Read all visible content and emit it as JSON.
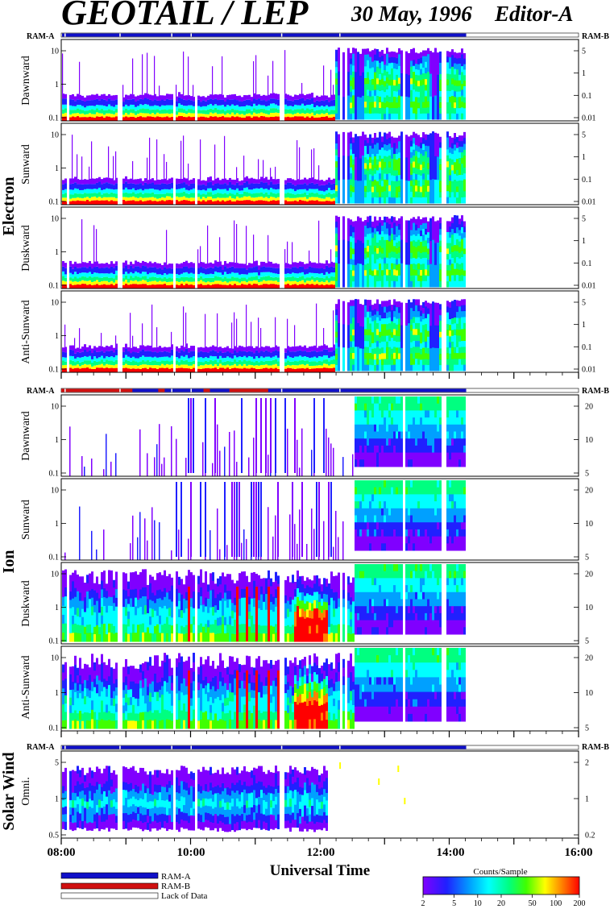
{
  "header": {
    "title": "GEOTAIL / LEP",
    "date": "30 May, 1996",
    "editor": "Editor-A"
  },
  "groups": {
    "electron": "Electron",
    "ion": "Ion",
    "solar_wind": "Solar Wind"
  },
  "ram": {
    "a": "RAM-A",
    "b": "RAM-B"
  },
  "panels": {
    "electron": [
      "Dawnward",
      "Sunward",
      "Duskward",
      "Anti-Sunward"
    ],
    "ion": [
      "Dawnward",
      "Sunward",
      "Duskward",
      "Anti-Sunward"
    ],
    "solar_wind": [
      "Omni."
    ]
  },
  "chart_data": {
    "type": "heatmap",
    "xlabel": "Universal Time",
    "x_ticks": [
      "08:00",
      "10:00",
      "12:00",
      "14:00",
      "16:00"
    ],
    "x_range_hours": [
      8,
      16
    ],
    "data_end_hour": 14.25,
    "electron_energy_ticks": [
      "10",
      "1",
      "0.1"
    ],
    "electron_right_ticks": [
      "5",
      "1",
      "0.1",
      "0.01"
    ],
    "ion_energy_ticks": [
      "10",
      "1",
      "0.1"
    ],
    "ion_right_ticks": [
      "20",
      "10",
      "5"
    ],
    "solar_wind_ticks": [
      "5",
      "1",
      "0.5"
    ],
    "solar_wind_right_ticks": [
      "2",
      "1",
      "0.2"
    ],
    "colorbar": {
      "title": "Counts/Sample",
      "ticks": [
        "2",
        "5",
        "10",
        "20",
        "50",
        "100",
        "200"
      ],
      "values": [
        2,
        5,
        10,
        20,
        50,
        100,
        200
      ],
      "scale": "log"
    },
    "legend": [
      {
        "label": "RAM-A",
        "color": "#1010c8"
      },
      {
        "label": "RAM-B",
        "color": "#d01010"
      },
      {
        "label": "Lack of Data",
        "color": "#ffffff"
      }
    ],
    "spectrogram_features": {
      "electron_boundary_hour": 12.2,
      "ion_hot_spot_hours": [
        11.6,
        12.1
      ]
    }
  },
  "colors": {
    "ram_a": "#1010c8",
    "ram_b": "#d01010",
    "colormap": [
      "#8000ff",
      "#2020ff",
      "#00a0ff",
      "#00ffff",
      "#00ff80",
      "#40ff00",
      "#ffff00",
      "#ff8000",
      "#ff0000"
    ]
  }
}
